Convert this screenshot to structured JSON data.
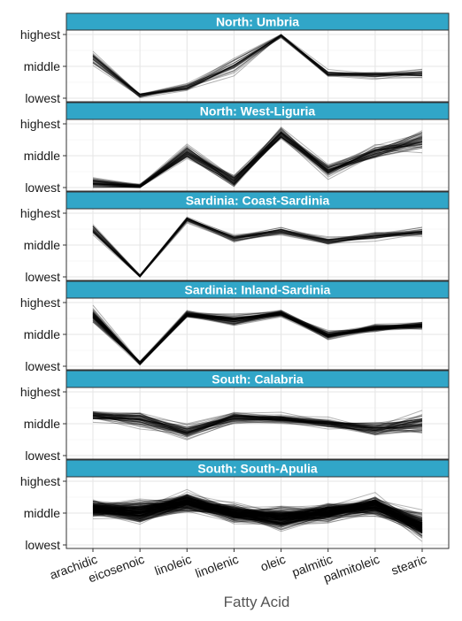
{
  "chart_data": {
    "type": "line",
    "chart_kind": "faceted parallel coordinates",
    "xlabel": "Fatty Acid",
    "categories": [
      "arachidic",
      "eicosenoic",
      "linoleic",
      "linolenic",
      "oleic",
      "palmitic",
      "palmitoleic",
      "stearic"
    ],
    "y_ticks": [
      "lowest",
      "middle",
      "highest"
    ],
    "y_range": [
      0,
      1
    ],
    "grid": true,
    "legend": "none",
    "line_color": "#000000",
    "strip_color": "#31A6C8",
    "panels": [
      {
        "title": "North: Umbria",
        "n_lines": 30,
        "spread": 0.05,
        "profile": [
          0.62,
          0.04,
          0.16,
          0.5,
          0.98,
          0.38,
          0.36,
          0.38
        ],
        "spread_by_category": [
          0.1,
          0.02,
          0.06,
          0.12,
          0.02,
          0.04,
          0.05,
          0.06
        ]
      },
      {
        "title": "North: West-Liguria",
        "n_lines": 50,
        "spread": 0.07,
        "profile": [
          0.07,
          0.02,
          0.55,
          0.1,
          0.85,
          0.27,
          0.55,
          0.72
        ],
        "spread_by_category": [
          0.07,
          0.02,
          0.1,
          0.08,
          0.09,
          0.08,
          0.08,
          0.15
        ]
      },
      {
        "title": "Sardinia: Coast-Sardinia",
        "n_lines": 33,
        "spread": 0.04,
        "profile": [
          0.74,
          0.01,
          0.9,
          0.6,
          0.72,
          0.56,
          0.64,
          0.7
        ],
        "spread_by_category": [
          0.08,
          0.01,
          0.04,
          0.05,
          0.04,
          0.04,
          0.05,
          0.07
        ]
      },
      {
        "title": "Sardinia: Inland-Sardinia",
        "n_lines": 65,
        "spread": 0.05,
        "profile": [
          0.78,
          0.05,
          0.82,
          0.72,
          0.83,
          0.48,
          0.6,
          0.64
        ],
        "spread_by_category": [
          0.12,
          0.02,
          0.05,
          0.07,
          0.04,
          0.06,
          0.06,
          0.05
        ]
      },
      {
        "title": "South: Calabria",
        "n_lines": 56,
        "spread": 0.08,
        "profile": [
          0.63,
          0.58,
          0.38,
          0.6,
          0.58,
          0.52,
          0.42,
          0.52
        ],
        "spread_by_category": [
          0.06,
          0.1,
          0.08,
          0.07,
          0.05,
          0.05,
          0.08,
          0.14
        ]
      },
      {
        "title": "South: South-Apulia",
        "n_lines": 206,
        "spread": 0.1,
        "profile": [
          0.58,
          0.52,
          0.68,
          0.5,
          0.42,
          0.52,
          0.62,
          0.3
        ],
        "spread_by_category": [
          0.1,
          0.14,
          0.12,
          0.1,
          0.14,
          0.12,
          0.12,
          0.18
        ]
      }
    ]
  }
}
